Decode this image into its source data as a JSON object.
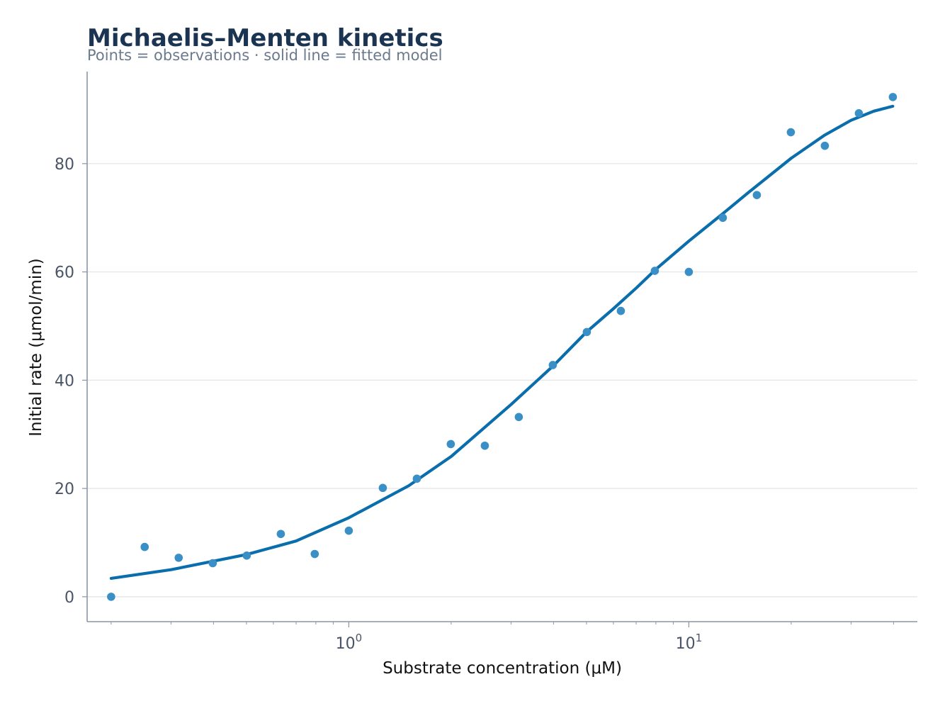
{
  "chart_data": {
    "type": "scatter",
    "title": "Michaelis–Menten kinetics",
    "subtitle": "Points = observations · solid line = fitted model",
    "xlabel": "Substrate concentration (μM)",
    "ylabel": "Initial rate (μmol/min)",
    "x_scale": "log",
    "xlim": [
      0.17,
      47
    ],
    "ylim": [
      -4.6,
      97
    ],
    "x_ticks": [
      {
        "value": 1,
        "base": "10",
        "exp": "0"
      },
      {
        "value": 10,
        "base": "10",
        "exp": "1"
      }
    ],
    "y_ticks": [
      0,
      20,
      40,
      60,
      80
    ],
    "grid": "horizontal",
    "colors": {
      "points": "#3a8fc6",
      "line": "#0b6eac",
      "title": "#1a3452",
      "subtitle": "#6b7a8c",
      "grid": "#e5e7eb",
      "axis": "#8a96a6"
    },
    "series": [
      {
        "kind": "points",
        "x": [
          0.2,
          0.251,
          0.316,
          0.398,
          0.501,
          0.631,
          0.794,
          1.0,
          1.259,
          1.585,
          1.995,
          2.512,
          3.162,
          3.981,
          5.012,
          6.31,
          7.943,
          10.0,
          12.589,
          15.849,
          19.953,
          25.119,
          31.623,
          39.811
        ],
        "y": [
          0.0,
          9.2,
          7.2,
          6.2,
          7.6,
          11.6,
          7.9,
          12.2,
          20.1,
          21.8,
          28.2,
          27.9,
          33.2,
          42.8,
          48.9,
          52.8,
          60.2,
          60.0,
          70.0,
          74.2,
          85.8,
          83.3,
          89.3,
          92.3
        ]
      },
      {
        "kind": "fit",
        "model": "Michaelis–Menten",
        "x": [
          0.2,
          0.3,
          0.5,
          0.7,
          1.0,
          1.5,
          2.0,
          3.0,
          4.0,
          5.0,
          6.0,
          7.0,
          8.0,
          10.0,
          12.5,
          15.0,
          20.0,
          25.0,
          30.0,
          35.0,
          39.8
        ],
        "y": [
          3.4,
          5.0,
          7.8,
          10.3,
          14.6,
          20.5,
          25.9,
          35.5,
          42.7,
          48.9,
          53.2,
          57.0,
          60.5,
          65.7,
          70.6,
          74.7,
          81.0,
          85.2,
          88.0,
          89.7,
          90.6
        ]
      }
    ]
  }
}
